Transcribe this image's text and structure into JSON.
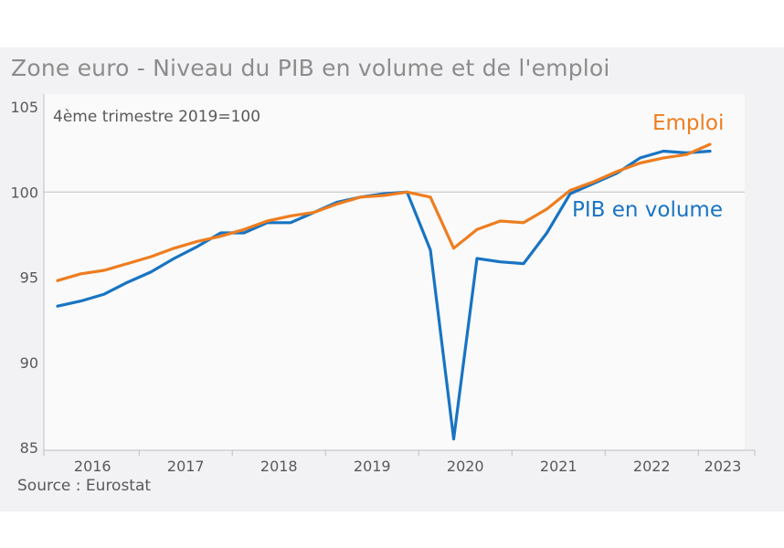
{
  "colors": {
    "pib": "#1874c2",
    "emploi": "#ee7d1f",
    "axis": "#bfbfbf",
    "text": "#595959"
  },
  "chart_data": {
    "type": "line",
    "title": "Zone euro - Niveau du PIB en volume et de l'emploi",
    "subtitle": "4ème trimestre 2019=100",
    "source": "Source : Eurostat",
    "ylim": [
      85,
      105
    ],
    "yticks": [
      85,
      90,
      95,
      100,
      105
    ],
    "year_labels": [
      "2016",
      "2017",
      "2018",
      "2019",
      "2020",
      "2021",
      "2022",
      "2023"
    ],
    "x": [
      "2016T1",
      "2016T2",
      "2016T3",
      "2016T4",
      "2017T1",
      "2017T2",
      "2017T3",
      "2017T4",
      "2018T1",
      "2018T2",
      "2018T3",
      "2018T4",
      "2019T1",
      "2019T2",
      "2019T3",
      "2019T4",
      "2020T1",
      "2020T2",
      "2020T3",
      "2020T4",
      "2021T1",
      "2021T2",
      "2021T3",
      "2021T4",
      "2022T1",
      "2022T2",
      "2022T3",
      "2022T4",
      "2023T1"
    ],
    "series": [
      {
        "name": "PIB en volume",
        "key": "pib",
        "values": [
          93.3,
          93.6,
          94.0,
          94.7,
          95.3,
          96.1,
          96.8,
          97.6,
          97.6,
          98.2,
          98.2,
          98.8,
          99.4,
          99.7,
          99.9,
          100.0,
          96.6,
          85.5,
          96.1,
          95.9,
          95.8,
          97.6,
          99.9,
          100.5,
          101.1,
          102.0,
          102.4,
          102.3,
          102.4
        ]
      },
      {
        "name": "Emploi",
        "key": "emploi",
        "values": [
          94.8,
          95.2,
          95.4,
          95.8,
          96.2,
          96.7,
          97.1,
          97.4,
          97.8,
          98.3,
          98.6,
          98.8,
          99.3,
          99.7,
          99.8,
          100.0,
          99.7,
          96.7,
          97.8,
          98.3,
          98.2,
          99.0,
          100.1,
          100.6,
          101.2,
          101.7,
          102.0,
          102.2,
          102.8
        ]
      }
    ],
    "grid": false,
    "reference_line": 100
  }
}
